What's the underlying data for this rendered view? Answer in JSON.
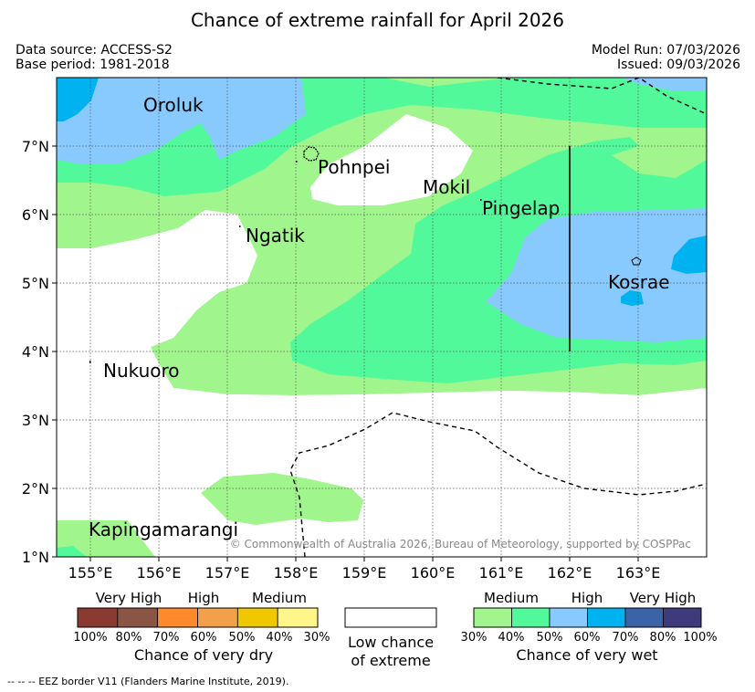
{
  "title": "Chance of extreme rainfall for April 2026",
  "meta": {
    "data_source": "Data source: ACCESS-S2",
    "base_period": "Base period: 1981-2018",
    "model_run": "Model Run: 07/03/2026",
    "issued": "Issued: 09/03/2026"
  },
  "map": {
    "places": [
      "Oroluk",
      "Pohnpei",
      "Mokil",
      "Pingelap",
      "Ngatik",
      "Kosrae",
      "Nukuoro",
      "Kapingamarangi"
    ],
    "lon_ticks": [
      "155°E",
      "156°E",
      "157°E",
      "158°E",
      "159°E",
      "160°E",
      "161°E",
      "162°E",
      "163°E"
    ],
    "lat_ticks": [
      "7°N",
      "6°N",
      "5°N",
      "4°N",
      "3°N",
      "2°N",
      "1°N"
    ],
    "copyright": "© Commonwealth of Australia 2026, Bureau of Meteorology, supported by COSPPac",
    "colors": {
      "white": "#ffffff",
      "wet_medium_30": "#a0f68c",
      "wet_medium_40": "#52f99a",
      "wet_high_50": "#88cafe",
      "wet_high_60": "#00b3f0",
      "wet_vhigh_70": "#3a63a8",
      "wet_vhigh_80": "#3d3b7b"
    }
  },
  "legend": {
    "dry": {
      "captions": [
        "Very High",
        "High",
        "Medium"
      ],
      "labels": [
        "100%",
        "80%",
        "70%",
        "60%",
        "50%",
        "40%",
        "30%"
      ],
      "colors": [
        "#8b3a32",
        "#8b5546",
        "#ff8a2c",
        "#f2a14a",
        "#f0c800",
        "#fff689"
      ],
      "title": "Chance of very dry"
    },
    "low": {
      "title_line1": "Low chance",
      "title_line2": "of extreme"
    },
    "wet": {
      "captions": [
        "Medium",
        "High",
        "Very High"
      ],
      "labels": [
        "30%",
        "40%",
        "50%",
        "60%",
        "70%",
        "80%",
        "100%"
      ],
      "colors": [
        "#a0f68c",
        "#52f99a",
        "#88cafe",
        "#00b3f0",
        "#3a63a8",
        "#3d3b7b"
      ],
      "title": "Chance of very wet"
    }
  },
  "footnote": "--  --  -- EEZ border V11 (Flanders Marine Institute, 2019)."
}
